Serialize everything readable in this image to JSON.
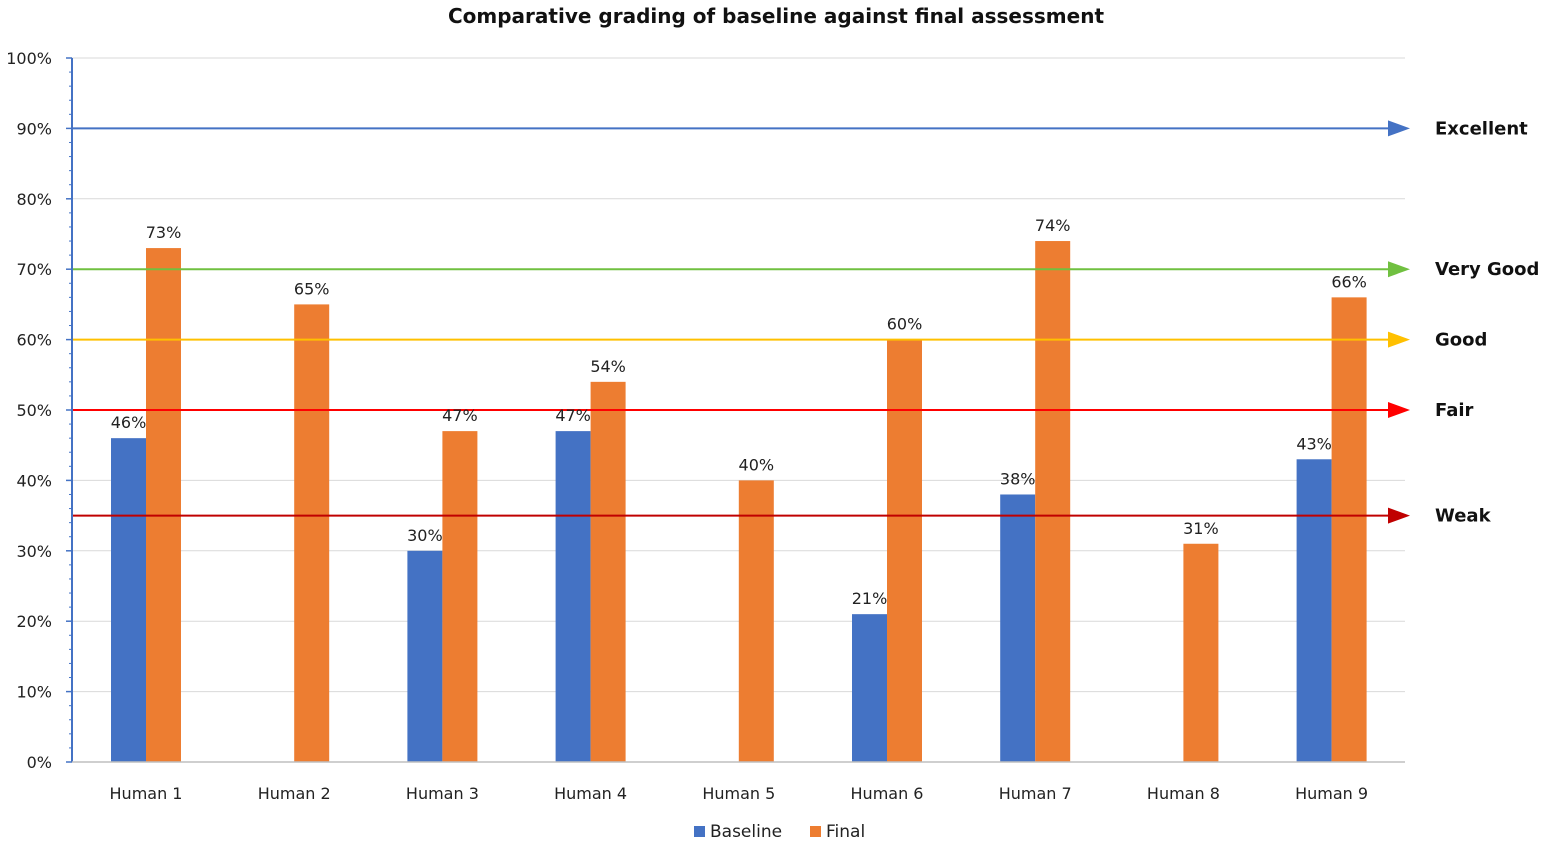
{
  "chart_data": {
    "type": "bar",
    "title": "Comparative grading of baseline against final assessment",
    "categories": [
      "Human 1",
      "Human 2",
      "Human 3",
      "Human 4",
      "Human 5",
      "Human 6",
      "Human 7",
      "Human 8",
      "Human 9"
    ],
    "series": [
      {
        "name": "Baseline",
        "color": "#4472c4",
        "values": [
          46,
          null,
          30,
          47,
          null,
          21,
          38,
          null,
          43
        ],
        "labels": [
          "46%",
          "",
          "30%",
          "47%",
          "",
          "21%",
          "38%",
          "",
          "43%"
        ]
      },
      {
        "name": "Final",
        "color": "#ed7d31",
        "values": [
          73,
          65,
          47,
          54,
          40,
          60,
          74,
          31,
          66
        ],
        "labels": [
          "73%",
          "65%",
          "47%",
          "54%",
          "40%",
          "60%",
          "74%",
          "31%",
          "66%"
        ]
      }
    ],
    "ylim": [
      0,
      100
    ],
    "yticks": [
      "0%",
      "10%",
      "20%",
      "30%",
      "40%",
      "50%",
      "60%",
      "70%",
      "80%",
      "90%",
      "100%"
    ],
    "grid": true,
    "legend_position": "bottom",
    "thresholds": [
      {
        "label": "Excellent",
        "value": 90,
        "color": "#4472c4"
      },
      {
        "label": "Very  Good",
        "value": 70,
        "color": "#70c040"
      },
      {
        "label": "Good",
        "value": 60,
        "color": "#ffc000"
      },
      {
        "label": "Fair",
        "value": 50,
        "color": "#ff0000"
      },
      {
        "label": "Weak",
        "value": 35,
        "color": "#c00000"
      }
    ]
  }
}
